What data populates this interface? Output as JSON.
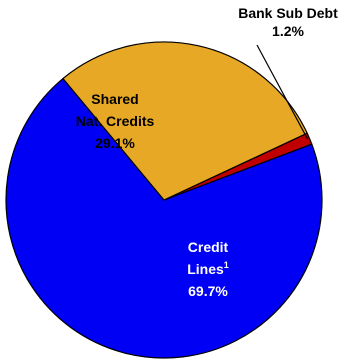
{
  "chart_data": {
    "type": "pie",
    "title": "",
    "slices": [
      {
        "name": "Bank Sub Debt",
        "label_lines": [
          "Bank Sub Debt"
        ],
        "sup": "",
        "value": 1.2,
        "display": "1.2%",
        "color": "#C00000"
      },
      {
        "name": "Credit Lines",
        "label_lines": [
          "Credit",
          "Lines"
        ],
        "sup": "1",
        "value": 69.7,
        "display": "69.7%",
        "color": "#0000F5"
      },
      {
        "name": "Shared Nat. Credits",
        "label_lines": [
          "Shared",
          "Nat. Credits"
        ],
        "sup": "",
        "value": 29.1,
        "display": "29.1%",
        "color": "#E7A825"
      }
    ],
    "legend": "none",
    "labels": "on-chart"
  }
}
